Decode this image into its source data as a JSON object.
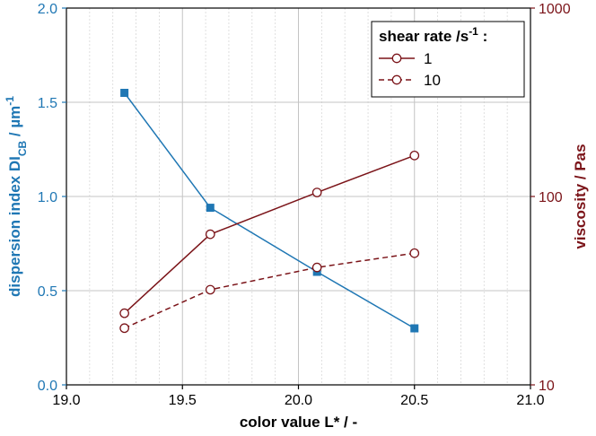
{
  "chart_data": {
    "type": "line",
    "x_axis": {
      "title": "color value L* / -",
      "range": [
        19.0,
        21.0
      ],
      "major_ticks": [
        19.0,
        19.5,
        20.0,
        20.5,
        21.0
      ],
      "tick_labels": [
        "19.0",
        "19.5",
        "20.0",
        "20.5",
        "21.0"
      ],
      "minor_step": 0.1,
      "grid": true
    },
    "y_axis_left": {
      "title_main": "dispersion index DI",
      "title_sub": "CB",
      "title_unit": " / µm",
      "title_sup": "-1",
      "range": [
        0.0,
        2.0
      ],
      "ticks": [
        0.0,
        0.5,
        1.0,
        1.5,
        2.0
      ],
      "tick_labels": [
        "0.0",
        "0.5",
        "1.0",
        "1.5",
        "2.0"
      ],
      "color": "#1f77b4",
      "grid": true
    },
    "y_axis_right": {
      "title": "viscosity / Pas",
      "scale": "log",
      "range": [
        10,
        1000
      ],
      "ticks": [
        10,
        100,
        1000
      ],
      "tick_labels": [
        "10",
        "100",
        "1000"
      ],
      "color": "#7b1419"
    },
    "series": [
      {
        "axis": "left",
        "marker": "filled-square",
        "line": "solid",
        "color": "#1f77b4",
        "x": [
          19.25,
          19.62,
          20.08,
          20.5
        ],
        "y": [
          1.55,
          0.94,
          0.6,
          0.3
        ]
      },
      {
        "name": "1",
        "axis": "right",
        "marker": "open-circle",
        "line": "solid",
        "color": "#7b1419",
        "x": [
          19.25,
          19.62,
          20.08,
          20.5
        ],
        "y": [
          24,
          63,
          105,
          165
        ]
      },
      {
        "name": "10",
        "axis": "right",
        "marker": "open-circle",
        "line": "dashed",
        "color": "#7b1419",
        "x": [
          19.25,
          19.62,
          20.08,
          20.5
        ],
        "y": [
          20,
          32,
          42,
          50
        ]
      }
    ],
    "legend": {
      "title_main": "shear rate /s",
      "title_sup": "-1",
      "title_tail": " :",
      "placement": "top-right"
    }
  }
}
